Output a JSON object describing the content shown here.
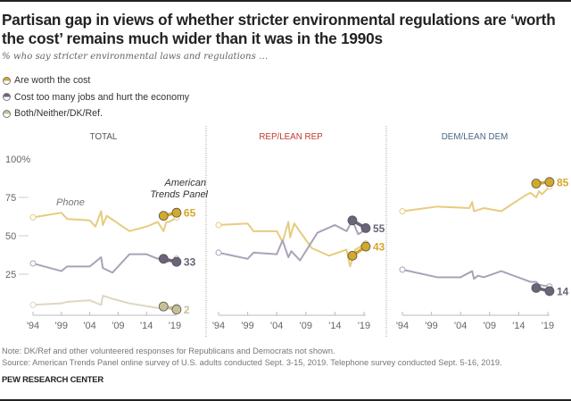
{
  "header": {
    "title": "Partisan gap in views of whether stricter environmental regulations are ‘worth the cost’ remains much wider than it was in the 1990s",
    "subtitle": "% who say stricter environmental laws and regulations …"
  },
  "legend": [
    {
      "label": "Are worth the cost",
      "icon": "half-filled-circle-icon",
      "color": "#d4a829"
    },
    {
      "label": "Cost too many jobs and hurt the economy",
      "icon": "half-filled-circle-icon",
      "color": "#6b6478"
    },
    {
      "label": "Both/Neither/DK/Ref.",
      "icon": "half-filled-circle-icon",
      "color": "#c9bf95"
    }
  ],
  "footer": {
    "note": "Note: DK/Ref and other volunteered responses for Republicans and Democrats not shown.",
    "source": "Source: American Trends Panel online survey of U.S. adults conducted Sept. 3-15, 2019. Telephone survey conducted Sept. 5-16, 2019.",
    "brand": "PEW RESEARCH CENTER"
  },
  "colors": {
    "worth_phone": "#e6cc7f",
    "worth_atp": "#d4a829",
    "cost_phone": "#aaa2b8",
    "cost_atp": "#6b6478",
    "both_phone": "#ddd7bf",
    "both_atp": "#c9bf95",
    "rep_title": "#c0392b",
    "dem_title": "#4a6784",
    "total_title": "#555555"
  },
  "chart_data": [
    {
      "type": "line",
      "title": "TOTAL",
      "xlabel": "",
      "ylabel": "",
      "x_ticks": [
        "'94",
        "'99",
        "'04",
        "'09",
        "'14",
        "'19"
      ],
      "y_ticks": [
        "100%",
        "75",
        "50",
        "25"
      ],
      "ylim": [
        0,
        100
      ],
      "xlim": [
        1994,
        2019.5
      ],
      "annotations": [
        "Phone",
        "American Trends Panel"
      ],
      "series": [
        {
          "name": "Are worth the cost",
          "mode": "Phone",
          "x": [
            1994,
            1999,
            2000,
            2004,
            2005,
            2006,
            2006.3,
            2007,
            2011,
            2014,
            2016,
            2017,
            2017.5,
            2018,
            2019.3
          ],
          "y": [
            62,
            65,
            61,
            60,
            56,
            66,
            57,
            63,
            53,
            56,
            59,
            53,
            59,
            59,
            62
          ]
        },
        {
          "name": "Are worth the cost",
          "mode": "ATP",
          "x": [
            2017,
            2019.3
          ],
          "y": [
            63,
            65
          ],
          "end_label": "65"
        },
        {
          "name": "Cost too many jobs and hurt the economy",
          "mode": "Phone",
          "x": [
            1994,
            1999,
            2000,
            2004,
            2006,
            2006.3,
            2008,
            2011,
            2014,
            2016,
            2017,
            2017.5,
            2019.3
          ],
          "y": [
            32,
            27,
            30,
            30,
            36,
            29,
            26,
            38,
            38,
            35,
            37,
            33,
            35
          ]
        },
        {
          "name": "Cost too many jobs and hurt the economy",
          "mode": "ATP",
          "x": [
            2017,
            2019.3
          ],
          "y": [
            35,
            33
          ],
          "end_label": "33"
        },
        {
          "name": "Both/Neither/DK/Ref.",
          "mode": "Phone",
          "x": [
            1994,
            1999,
            2000,
            2004,
            2006,
            2006.3,
            2008,
            2011,
            2016,
            2019.3
          ],
          "y": [
            5,
            6,
            7,
            8,
            5,
            11,
            9,
            6,
            3,
            4
          ]
        },
        {
          "name": "Both/Neither/DK/Ref.",
          "mode": "ATP",
          "x": [
            2017,
            2019.3
          ],
          "y": [
            4,
            2
          ],
          "end_label": "2"
        }
      ]
    },
    {
      "type": "line",
      "title": "REP/LEAN REP",
      "x_ticks": [
        "'94",
        "'99",
        "'04",
        "'09",
        "'14",
        "'19"
      ],
      "ylim": [
        0,
        100
      ],
      "xlim": [
        1994,
        2019.5
      ],
      "series": [
        {
          "name": "Are worth the cost",
          "mode": "Phone",
          "x": [
            1994,
            1999,
            2000,
            2004,
            2005,
            2006,
            2006.3,
            2007,
            2010,
            2013,
            2016,
            2016.6,
            2017.5,
            2019.3
          ],
          "y": [
            57,
            58,
            53,
            53,
            46,
            59,
            49,
            58,
            42,
            37,
            41,
            30,
            41,
            45
          ]
        },
        {
          "name": "Are worth the cost",
          "mode": "ATP",
          "x": [
            2017,
            2019.3
          ],
          "y": [
            37,
            43
          ],
          "end_label": "43"
        },
        {
          "name": "Cost too many jobs and hurt the economy",
          "mode": "Phone",
          "x": [
            1994,
            1999,
            2000,
            2004,
            2005,
            2006,
            2006.5,
            2008,
            2011,
            2014,
            2016,
            2017,
            2018,
            2019.3
          ],
          "y": [
            39,
            35,
            39,
            38,
            47,
            36,
            40,
            34,
            52,
            57,
            53,
            60,
            51,
            54
          ]
        },
        {
          "name": "Cost too many jobs and hurt the economy",
          "mode": "ATP",
          "x": [
            2017,
            2019.3
          ],
          "y": [
            60,
            55
          ],
          "end_label": "55"
        }
      ]
    },
    {
      "type": "line",
      "title": "DEM/LEAN DEM",
      "x_ticks": [
        "'94",
        "'99",
        "'04",
        "'09",
        "'14",
        "'19"
      ],
      "ylim": [
        0,
        100
      ],
      "xlim": [
        1994,
        2019.5
      ],
      "series": [
        {
          "name": "Are worth the cost",
          "mode": "Phone",
          "x": [
            1994,
            2000,
            2005.5,
            2006,
            2006.3,
            2008,
            2011,
            2015,
            2016,
            2017,
            2017.5,
            2018,
            2019.3
          ],
          "y": [
            66,
            69,
            68,
            72,
            66,
            68,
            66,
            76,
            78,
            75,
            79,
            77,
            82
          ]
        },
        {
          "name": "Are worth the cost",
          "mode": "ATP",
          "x": [
            2017,
            2019.3
          ],
          "y": [
            84,
            85
          ],
          "end_label": "85"
        },
        {
          "name": "Cost too many jobs and hurt the economy",
          "mode": "Phone",
          "x": [
            1994,
            2000,
            2004,
            2006,
            2006.3,
            2007,
            2008,
            2011,
            2016,
            2017,
            2017.5,
            2019.3
          ],
          "y": [
            28,
            23,
            23,
            27,
            22,
            24,
            23,
            27,
            20,
            20,
            18,
            17
          ]
        },
        {
          "name": "Cost too many jobs and hurt the economy",
          "mode": "ATP",
          "x": [
            2017,
            2019.3
          ],
          "y": [
            16,
            14
          ],
          "end_label": "14"
        }
      ]
    }
  ]
}
